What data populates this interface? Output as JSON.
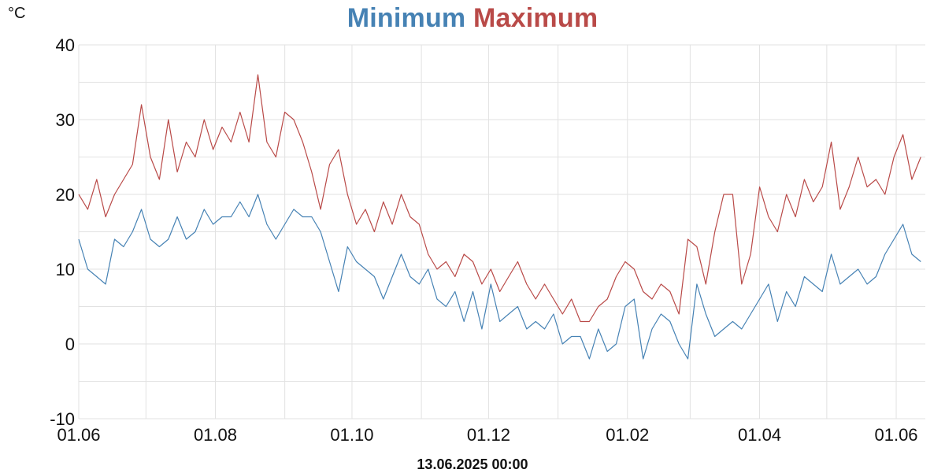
{
  "title": {
    "minimum_label": "Minimum",
    "maximum_label": "Maximum",
    "minimum_color": "#4682b4",
    "maximum_color": "#b94a48"
  },
  "unit_label": "°C",
  "timestamp": "13.06.2025 00:00",
  "chart_data": {
    "type": "line",
    "ylim": [
      -10,
      40
    ],
    "yticks": [
      40,
      30,
      20,
      10,
      0,
      -10
    ],
    "x_tick_labels": [
      "01.06",
      "01.08",
      "01.10",
      "01.12",
      "01.02",
      "01.04",
      "01.06"
    ],
    "x_tick_dates": [
      "2024-06-01",
      "2024-08-01",
      "2024-10-01",
      "2024-12-01",
      "2025-02-01",
      "2025-04-01",
      "2025-06-01"
    ],
    "xlim": [
      "2024-06-01",
      "2025-06-14"
    ],
    "grid": true,
    "series": [
      {
        "name": "Minimum",
        "color": "#4682b4",
        "points": [
          [
            "2024-06-01",
            14
          ],
          [
            "2024-06-05",
            10
          ],
          [
            "2024-06-09",
            9
          ],
          [
            "2024-06-13",
            8
          ],
          [
            "2024-06-17",
            14
          ],
          [
            "2024-06-21",
            13
          ],
          [
            "2024-06-25",
            15
          ],
          [
            "2024-06-29",
            18
          ],
          [
            "2024-07-03",
            14
          ],
          [
            "2024-07-07",
            13
          ],
          [
            "2024-07-11",
            14
          ],
          [
            "2024-07-15",
            17
          ],
          [
            "2024-07-19",
            14
          ],
          [
            "2024-07-23",
            15
          ],
          [
            "2024-07-27",
            18
          ],
          [
            "2024-07-31",
            16
          ],
          [
            "2024-08-04",
            17
          ],
          [
            "2024-08-08",
            17
          ],
          [
            "2024-08-12",
            19
          ],
          [
            "2024-08-16",
            17
          ],
          [
            "2024-08-20",
            20
          ],
          [
            "2024-08-24",
            16
          ],
          [
            "2024-08-28",
            14
          ],
          [
            "2024-09-01",
            16
          ],
          [
            "2024-09-05",
            18
          ],
          [
            "2024-09-09",
            17
          ],
          [
            "2024-09-13",
            17
          ],
          [
            "2024-09-17",
            15
          ],
          [
            "2024-09-21",
            11
          ],
          [
            "2024-09-25",
            7
          ],
          [
            "2024-09-29",
            13
          ],
          [
            "2024-10-03",
            11
          ],
          [
            "2024-10-07",
            10
          ],
          [
            "2024-10-11",
            9
          ],
          [
            "2024-10-15",
            6
          ],
          [
            "2024-10-19",
            9
          ],
          [
            "2024-10-23",
            12
          ],
          [
            "2024-10-27",
            9
          ],
          [
            "2024-10-31",
            8
          ],
          [
            "2024-11-04",
            10
          ],
          [
            "2024-11-08",
            6
          ],
          [
            "2024-11-12",
            5
          ],
          [
            "2024-11-16",
            7
          ],
          [
            "2024-11-20",
            3
          ],
          [
            "2024-11-24",
            7
          ],
          [
            "2024-11-28",
            2
          ],
          [
            "2024-12-02",
            8
          ],
          [
            "2024-12-06",
            3
          ],
          [
            "2024-12-10",
            4
          ],
          [
            "2024-12-14",
            5
          ],
          [
            "2024-12-18",
            2
          ],
          [
            "2024-12-22",
            3
          ],
          [
            "2024-12-26",
            2
          ],
          [
            "2024-12-30",
            4
          ],
          [
            "2025-01-03",
            0
          ],
          [
            "2025-01-07",
            1
          ],
          [
            "2025-01-11",
            1
          ],
          [
            "2025-01-15",
            -2
          ],
          [
            "2025-01-19",
            2
          ],
          [
            "2025-01-23",
            -1
          ],
          [
            "2025-01-27",
            0
          ],
          [
            "2025-01-31",
            5
          ],
          [
            "2025-02-04",
            6
          ],
          [
            "2025-02-08",
            -2
          ],
          [
            "2025-02-12",
            2
          ],
          [
            "2025-02-16",
            4
          ],
          [
            "2025-02-20",
            3
          ],
          [
            "2025-02-24",
            0
          ],
          [
            "2025-02-28",
            -2
          ],
          [
            "2025-03-04",
            8
          ],
          [
            "2025-03-08",
            4
          ],
          [
            "2025-03-12",
            1
          ],
          [
            "2025-03-16",
            2
          ],
          [
            "2025-03-20",
            3
          ],
          [
            "2025-03-24",
            2
          ],
          [
            "2025-03-28",
            4
          ],
          [
            "2025-04-01",
            6
          ],
          [
            "2025-04-05",
            8
          ],
          [
            "2025-04-09",
            3
          ],
          [
            "2025-04-13",
            7
          ],
          [
            "2025-04-17",
            5
          ],
          [
            "2025-04-21",
            9
          ],
          [
            "2025-04-25",
            8
          ],
          [
            "2025-04-29",
            7
          ],
          [
            "2025-05-03",
            12
          ],
          [
            "2025-05-07",
            8
          ],
          [
            "2025-05-11",
            9
          ],
          [
            "2025-05-15",
            10
          ],
          [
            "2025-05-19",
            8
          ],
          [
            "2025-05-23",
            9
          ],
          [
            "2025-05-27",
            12
          ],
          [
            "2025-05-31",
            14
          ],
          [
            "2025-06-04",
            16
          ],
          [
            "2025-06-08",
            12
          ],
          [
            "2025-06-12",
            11
          ]
        ]
      },
      {
        "name": "Maximum",
        "color": "#b94a48",
        "points": [
          [
            "2024-06-01",
            20
          ],
          [
            "2024-06-05",
            18
          ],
          [
            "2024-06-09",
            22
          ],
          [
            "2024-06-13",
            17
          ],
          [
            "2024-06-17",
            20
          ],
          [
            "2024-06-21",
            22
          ],
          [
            "2024-06-25",
            24
          ],
          [
            "2024-06-29",
            32
          ],
          [
            "2024-07-03",
            25
          ],
          [
            "2024-07-07",
            22
          ],
          [
            "2024-07-11",
            30
          ],
          [
            "2024-07-15",
            23
          ],
          [
            "2024-07-19",
            27
          ],
          [
            "2024-07-23",
            25
          ],
          [
            "2024-07-27",
            30
          ],
          [
            "2024-07-31",
            26
          ],
          [
            "2024-08-04",
            29
          ],
          [
            "2024-08-08",
            27
          ],
          [
            "2024-08-12",
            31
          ],
          [
            "2024-08-16",
            27
          ],
          [
            "2024-08-20",
            36
          ],
          [
            "2024-08-24",
            27
          ],
          [
            "2024-08-28",
            25
          ],
          [
            "2024-09-01",
            31
          ],
          [
            "2024-09-05",
            30
          ],
          [
            "2024-09-09",
            27
          ],
          [
            "2024-09-13",
            23
          ],
          [
            "2024-09-17",
            18
          ],
          [
            "2024-09-21",
            24
          ],
          [
            "2024-09-25",
            26
          ],
          [
            "2024-09-29",
            20
          ],
          [
            "2024-10-03",
            16
          ],
          [
            "2024-10-07",
            18
          ],
          [
            "2024-10-11",
            15
          ],
          [
            "2024-10-15",
            19
          ],
          [
            "2024-10-19",
            16
          ],
          [
            "2024-10-23",
            20
          ],
          [
            "2024-10-27",
            17
          ],
          [
            "2024-10-31",
            16
          ],
          [
            "2024-11-04",
            12
          ],
          [
            "2024-11-08",
            10
          ],
          [
            "2024-11-12",
            11
          ],
          [
            "2024-11-16",
            9
          ],
          [
            "2024-11-20",
            12
          ],
          [
            "2024-11-24",
            11
          ],
          [
            "2024-11-28",
            8
          ],
          [
            "2024-12-02",
            10
          ],
          [
            "2024-12-06",
            7
          ],
          [
            "2024-12-10",
            9
          ],
          [
            "2024-12-14",
            11
          ],
          [
            "2024-12-18",
            8
          ],
          [
            "2024-12-22",
            6
          ],
          [
            "2024-12-26",
            8
          ],
          [
            "2024-12-30",
            6
          ],
          [
            "2025-01-03",
            4
          ],
          [
            "2025-01-07",
            6
          ],
          [
            "2025-01-11",
            3
          ],
          [
            "2025-01-15",
            3
          ],
          [
            "2025-01-19",
            5
          ],
          [
            "2025-01-23",
            6
          ],
          [
            "2025-01-27",
            9
          ],
          [
            "2025-01-31",
            11
          ],
          [
            "2025-02-04",
            10
          ],
          [
            "2025-02-08",
            7
          ],
          [
            "2025-02-12",
            6
          ],
          [
            "2025-02-16",
            8
          ],
          [
            "2025-02-20",
            7
          ],
          [
            "2025-02-24",
            4
          ],
          [
            "2025-02-28",
            14
          ],
          [
            "2025-03-04",
            13
          ],
          [
            "2025-03-08",
            8
          ],
          [
            "2025-03-12",
            15
          ],
          [
            "2025-03-16",
            20
          ],
          [
            "2025-03-20",
            20
          ],
          [
            "2025-03-24",
            8
          ],
          [
            "2025-03-28",
            12
          ],
          [
            "2025-04-01",
            21
          ],
          [
            "2025-04-05",
            17
          ],
          [
            "2025-04-09",
            15
          ],
          [
            "2025-04-13",
            20
          ],
          [
            "2025-04-17",
            17
          ],
          [
            "2025-04-21",
            22
          ],
          [
            "2025-04-25",
            19
          ],
          [
            "2025-04-29",
            21
          ],
          [
            "2025-05-03",
            27
          ],
          [
            "2025-05-07",
            18
          ],
          [
            "2025-05-11",
            21
          ],
          [
            "2025-05-15",
            25
          ],
          [
            "2025-05-19",
            21
          ],
          [
            "2025-05-23",
            22
          ],
          [
            "2025-05-27",
            20
          ],
          [
            "2025-05-31",
            25
          ],
          [
            "2025-06-04",
            28
          ],
          [
            "2025-06-08",
            22
          ],
          [
            "2025-06-12",
            25
          ]
        ]
      }
    ]
  }
}
